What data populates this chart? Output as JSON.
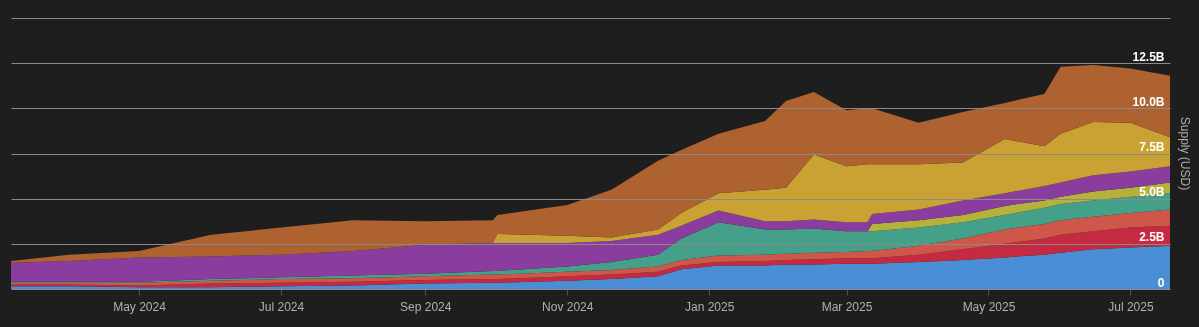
{
  "chart_data": {
    "type": "area",
    "stacked": true,
    "ylabel": "Supply (USD)",
    "x": [
      "2024-03-07",
      "2024-04-01",
      "2024-05-01",
      "2024-06-01",
      "2024-07-01",
      "2024-08-01",
      "2024-09-01",
      "2024-09-30",
      "2024-10-02",
      "2024-11-01",
      "2024-11-20",
      "2024-12-10",
      "2024-12-20",
      "2025-01-05",
      "2025-01-25",
      "2025-02-03",
      "2025-02-15",
      "2025-03-01",
      "2025-03-10",
      "2025-03-12",
      "2025-04-01",
      "2025-04-20",
      "2025-05-08",
      "2025-05-25",
      "2025-06-01",
      "2025-06-15",
      "2025-07-01",
      "2025-07-18"
    ],
    "series": [
      {
        "color": "#4a8fd6",
        "values": [
          0.15,
          0.15,
          0.1,
          0.1,
          0.15,
          0.2,
          0.3,
          0.35,
          0.35,
          0.45,
          0.55,
          0.7,
          1.1,
          1.3,
          1.3,
          1.35,
          1.35,
          1.4,
          1.4,
          1.4,
          1.5,
          1.6,
          1.75,
          1.9,
          2.0,
          2.2,
          2.3,
          2.4
        ]
      },
      {
        "color": "#c42a40",
        "values": [
          0.1,
          0.1,
          0.1,
          0.2,
          0.2,
          0.2,
          0.2,
          0.2,
          0.2,
          0.25,
          0.25,
          0.25,
          0.2,
          0.2,
          0.25,
          0.25,
          0.3,
          0.3,
          0.3,
          0.3,
          0.4,
          0.6,
          0.75,
          0.9,
          1.0,
          1.0,
          1.1,
          1.1
        ]
      },
      {
        "color": "#cf574a",
        "values": [
          0.1,
          0.1,
          0.15,
          0.15,
          0.2,
          0.2,
          0.2,
          0.25,
          0.25,
          0.25,
          0.25,
          0.3,
          0.3,
          0.35,
          0.35,
          0.35,
          0.35,
          0.35,
          0.4,
          0.4,
          0.5,
          0.6,
          0.8,
          0.8,
          0.8,
          0.8,
          0.8,
          0.9
        ]
      },
      {
        "color": "#45a089",
        "values": [
          0.05,
          0.05,
          0.05,
          0.1,
          0.1,
          0.15,
          0.15,
          0.2,
          0.2,
          0.3,
          0.45,
          0.65,
          1.2,
          1.85,
          1.4,
          1.35,
          1.35,
          1.15,
          1.1,
          1.1,
          1.0,
          0.9,
          0.8,
          0.9,
          0.9,
          0.9,
          0.9,
          0.9
        ]
      },
      {
        "color": "#b5b23c",
        "values": [
          0,
          0,
          0,
          0,
          0,
          0,
          0,
          0,
          0,
          0,
          0,
          0,
          0,
          0,
          0,
          0,
          0,
          0,
          0,
          0.4,
          0.4,
          0.4,
          0.5,
          0.4,
          0.4,
          0.5,
          0.5,
          0.6
        ]
      },
      {
        "color": "#8a3d9e",
        "values": [
          1.05,
          1.15,
          1.35,
          1.25,
          1.25,
          1.35,
          1.6,
          1.55,
          1.55,
          1.3,
          1.15,
          1.1,
          0.7,
          0.65,
          0.45,
          0.45,
          0.5,
          0.5,
          0.5,
          0.55,
          0.6,
          0.8,
          0.7,
          0.8,
          0.8,
          0.9,
          0.9,
          0.9
        ]
      },
      {
        "color": "#c9a233",
        "values": [
          0,
          0,
          0,
          0,
          0,
          0,
          0,
          0,
          0.5,
          0.4,
          0.2,
          0.3,
          0.7,
          0.95,
          1.75,
          1.85,
          3.6,
          3.1,
          3.2,
          2.75,
          2.5,
          2.1,
          3.0,
          2.2,
          2.7,
          2.95,
          2.7,
          1.6
        ]
      },
      {
        "color": "#ad6230",
        "values": [
          0.1,
          0.35,
          0.35,
          1.2,
          1.5,
          1.7,
          1.3,
          1.25,
          1.05,
          1.7,
          2.65,
          3.8,
          3.5,
          3.3,
          3.8,
          4.8,
          3.45,
          3.1,
          3.1,
          3.1,
          2.3,
          2.8,
          2.0,
          2.9,
          3.7,
          3.15,
          3.0,
          3.4
        ]
      }
    ],
    "xlim": [
      "2024-03-07",
      "2025-07-18"
    ],
    "xticks": [
      {
        "value": "2024-05-01",
        "label": "May 2024"
      },
      {
        "value": "2024-07-01",
        "label": "Jul 2024"
      },
      {
        "value": "2024-09-01",
        "label": "Sep 2024"
      },
      {
        "value": "2024-11-01",
        "label": "Nov 2024"
      },
      {
        "value": "2025-01-01",
        "label": "Jan 2025"
      },
      {
        "value": "2025-03-01",
        "label": "Mar 2025"
      },
      {
        "value": "2025-05-01",
        "label": "May 2025"
      },
      {
        "value": "2025-07-01",
        "label": "Jul 2025"
      }
    ],
    "ylim": [
      0,
      15
    ],
    "yticks": [
      0,
      {
        "value": 2.5,
        "label": "2.5B"
      },
      {
        "value": 5,
        "label": "5.0B"
      },
      {
        "value": 7.5,
        "label": "7.5B"
      },
      {
        "value": 10,
        "label": "10.0B"
      },
      {
        "value": 12.5,
        "label": "12.5B"
      },
      {
        "value": 15,
        "label": null
      }
    ],
    "grid": "y"
  }
}
